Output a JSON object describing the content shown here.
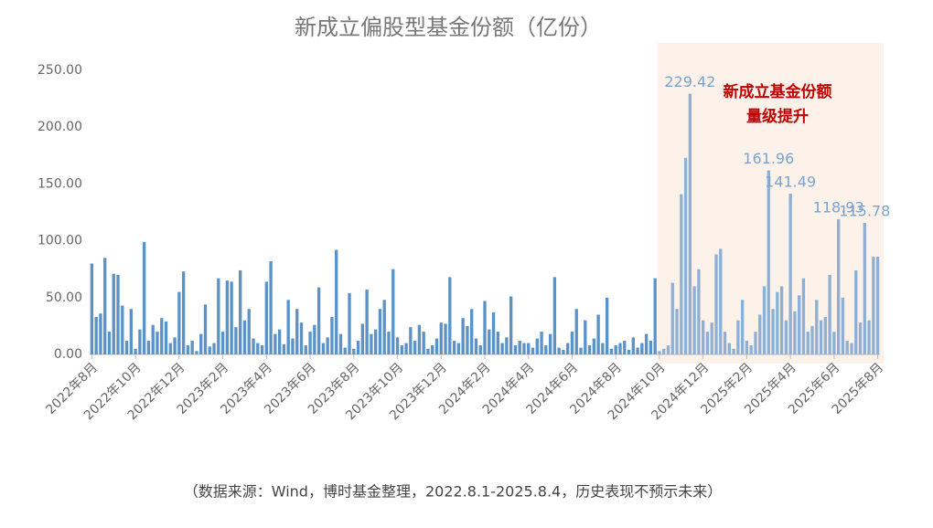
{
  "chart_data": {
    "type": "bar",
    "title": "新成立偏股型基金份额（亿份）",
    "source": "（数据来源：Wind，博时基金整理，2022.8.1-2025.8.4，历史表现不预示未来）",
    "annotation": [
      "新成立基金份额",
      "量级提升"
    ],
    "annotation_color": "#c00000",
    "color": "#5b93c9",
    "highlight_start": "2024年10月",
    "highlight_color": "#fdf2ea",
    "highlight_bar_color": "#8eb0d6",
    "value_label_color": "#7ba3cf",
    "ylim": [
      0,
      250
    ],
    "yticks": [
      {
        "value": 0,
        "label": "0.00"
      },
      {
        "value": 50,
        "label": "50.00"
      },
      {
        "value": 100,
        "label": "100.00"
      },
      {
        "value": 150,
        "label": "150.00"
      },
      {
        "value": 200,
        "label": "200.00"
      },
      {
        "value": 250,
        "label": "250.00"
      }
    ],
    "categories": [
      "2022年8月",
      null,
      null,
      null,
      null,
      null,
      null,
      null,
      null,
      null,
      "2022年10月",
      null,
      null,
      null,
      null,
      null,
      null,
      null,
      null,
      null,
      "2022年12月",
      null,
      null,
      null,
      null,
      null,
      null,
      null,
      null,
      null,
      "2023年2月",
      null,
      null,
      null,
      null,
      null,
      null,
      null,
      null,
      null,
      "2023年4月",
      null,
      null,
      null,
      null,
      null,
      null,
      null,
      null,
      null,
      "2023年6月",
      null,
      null,
      null,
      null,
      null,
      null,
      null,
      null,
      null,
      "2023年8月",
      null,
      null,
      null,
      null,
      null,
      null,
      null,
      null,
      null,
      "2023年10月",
      null,
      null,
      null,
      null,
      null,
      null,
      null,
      null,
      null,
      "2023年12月",
      null,
      null,
      null,
      null,
      null,
      null,
      null,
      null,
      null,
      "2024年2月",
      null,
      null,
      null,
      null,
      null,
      null,
      null,
      null,
      null,
      "2024年4月",
      null,
      null,
      null,
      null,
      null,
      null,
      null,
      null,
      null,
      "2024年6月",
      null,
      null,
      null,
      null,
      null,
      null,
      null,
      null,
      null,
      "2024年8月",
      null,
      null,
      null,
      null,
      null,
      null,
      null,
      null,
      null,
      "2024年10月",
      null,
      null,
      null,
      null,
      null,
      null,
      null,
      null,
      null,
      "2024年12月",
      null,
      null,
      null,
      null,
      null,
      null,
      null,
      null,
      null,
      "2025年2月",
      null,
      null,
      null,
      null,
      null,
      null,
      null,
      null,
      null,
      "2025年4月",
      null,
      null,
      null,
      null,
      null,
      null,
      null,
      null,
      null,
      "2025年6月",
      null,
      null,
      null,
      null,
      null,
      null,
      null,
      null,
      null,
      "2025年8月"
    ],
    "values": [
      80,
      33,
      36,
      85,
      20,
      71,
      70,
      43,
      12,
      40,
      5,
      22,
      99,
      12,
      26,
      20,
      32,
      29,
      10,
      15,
      55,
      73,
      8,
      12,
      3,
      18,
      44,
      7,
      10,
      67,
      20,
      65,
      64,
      24,
      74,
      30,
      40,
      14,
      10,
      8,
      64,
      82,
      18,
      22,
      9,
      48,
      14,
      40,
      28,
      8,
      20,
      26,
      59,
      10,
      15,
      33,
      92,
      18,
      6,
      54,
      5,
      12,
      27,
      57,
      18,
      22,
      40,
      48,
      20,
      75,
      15,
      8,
      10,
      24,
      12,
      26,
      20,
      5,
      8,
      14,
      28,
      27,
      68,
      12,
      10,
      32,
      25,
      40,
      14,
      8,
      47,
      22,
      37,
      20,
      10,
      15,
      51,
      8,
      12,
      10,
      10,
      6,
      14,
      20,
      8,
      18,
      68,
      6,
      4,
      10,
      20,
      40,
      6,
      30,
      8,
      14,
      35,
      10,
      50,
      5,
      8,
      10,
      12,
      4,
      15,
      6,
      10,
      18,
      12,
      67,
      3,
      5,
      8,
      63,
      40,
      141,
      173,
      229.42,
      60,
      75,
      30,
      20,
      28,
      88,
      93,
      20,
      10,
      5,
      30,
      48,
      12,
      8,
      20,
      35,
      60,
      161.96,
      40,
      55,
      60,
      30,
      141.49,
      38,
      52,
      67,
      20,
      25,
      48,
      30,
      33,
      70,
      20,
      118.93,
      50,
      12,
      10,
      74,
      28,
      115.78,
      30,
      86,
      86
    ],
    "value_labels": [
      null,
      null,
      null,
      null,
      null,
      null,
      null,
      null,
      null,
      null,
      null,
      null,
      null,
      null,
      null,
      null,
      null,
      null,
      null,
      null,
      null,
      null,
      null,
      null,
      null,
      null,
      null,
      null,
      null,
      null,
      null,
      null,
      null,
      null,
      null,
      null,
      null,
      null,
      null,
      null,
      null,
      null,
      null,
      null,
      null,
      null,
      null,
      null,
      null,
      null,
      null,
      null,
      null,
      null,
      null,
      null,
      null,
      null,
      null,
      null,
      null,
      null,
      null,
      null,
      null,
      null,
      null,
      null,
      null,
      null,
      null,
      null,
      null,
      null,
      null,
      null,
      null,
      null,
      null,
      null,
      null,
      null,
      null,
      null,
      null,
      null,
      null,
      null,
      null,
      null,
      null,
      null,
      null,
      null,
      null,
      null,
      null,
      null,
      null,
      null,
      null,
      null,
      null,
      null,
      null,
      null,
      null,
      null,
      null,
      null,
      null,
      null,
      null,
      null,
      null,
      null,
      null,
      null,
      null,
      null,
      null,
      null,
      null,
      null,
      null,
      null,
      null,
      null,
      null,
      null,
      null,
      null,
      null,
      null,
      null,
      null,
      null,
      "229.42",
      null,
      null,
      null,
      null,
      null,
      null,
      null,
      null,
      null,
      null,
      null,
      null,
      null,
      null,
      null,
      null,
      null,
      "161.96",
      null,
      null,
      null,
      null,
      "141.49",
      null,
      null,
      null,
      null,
      null,
      null,
      null,
      null,
      null,
      null,
      "118.93",
      null,
      null,
      null,
      null,
      null,
      "115.78",
      null,
      null,
      null
    ]
  }
}
